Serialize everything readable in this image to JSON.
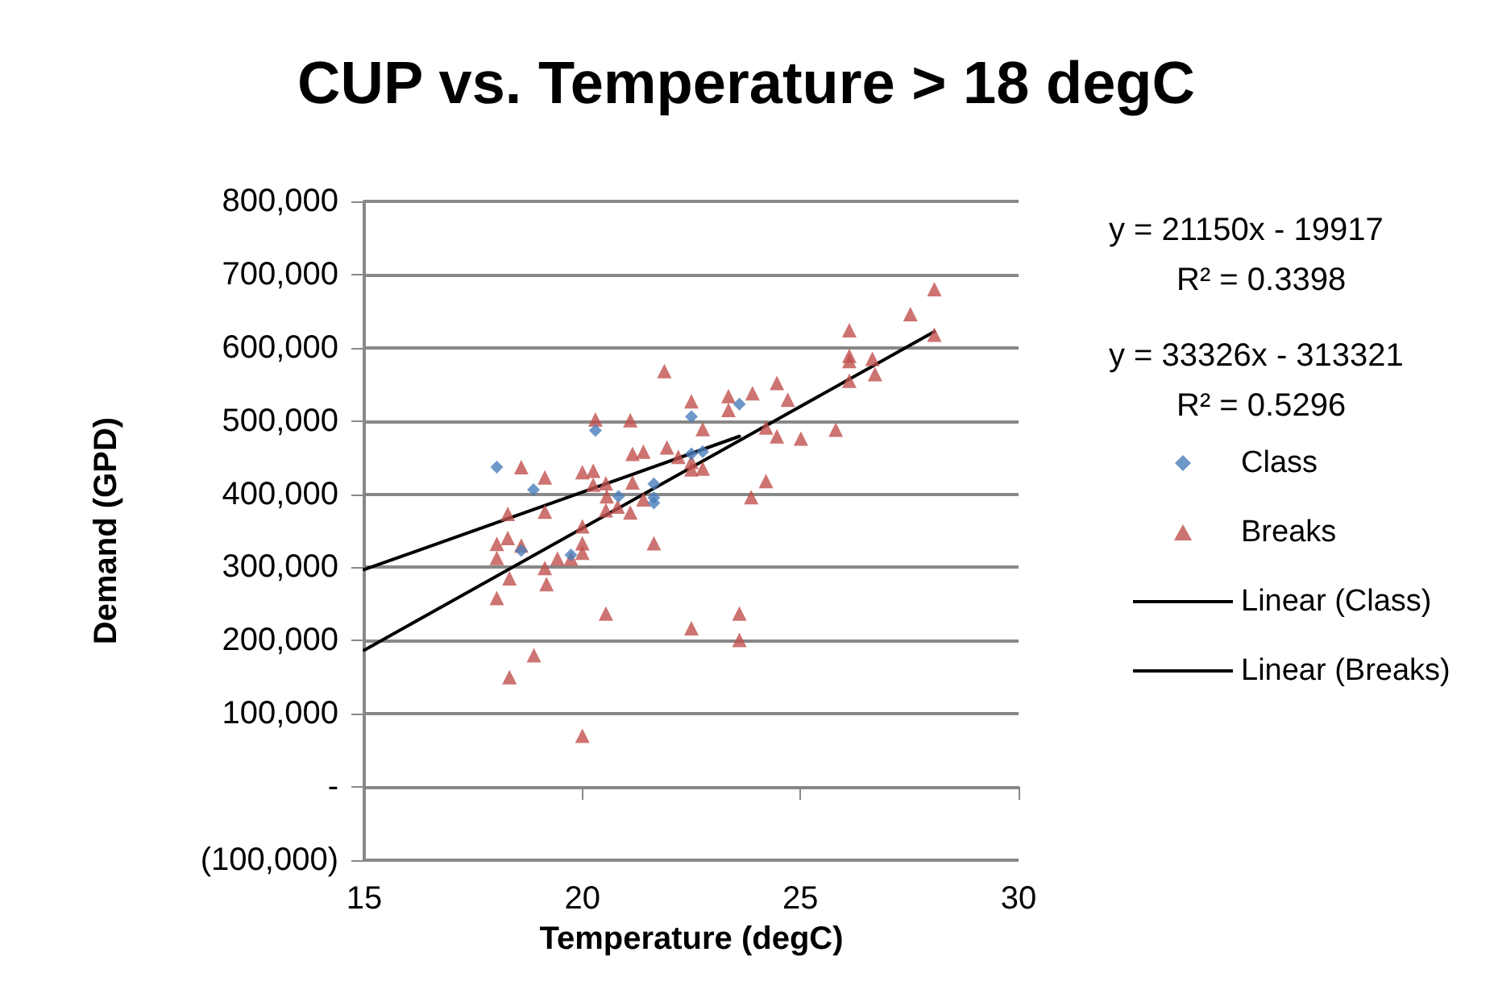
{
  "chart_data": {
    "type": "scatter",
    "title": "CUP vs. Temperature > 18 degC",
    "xlabel": "Temperature (degC)",
    "ylabel": "Demand (GPD)",
    "annotations": [
      "y = 21150x - 19917",
      "R² = 0.3398",
      "y = 33326x - 313321",
      "R² = 0.5296"
    ],
    "xlim": [
      15,
      30
    ],
    "xticks": [
      15,
      20,
      25,
      30
    ],
    "ylim": [
      -100000,
      800000
    ],
    "yticks": [
      {
        "value": -100000,
        "label": "(100,000)"
      },
      {
        "value": 0,
        "label": "-"
      },
      {
        "value": 100000,
        "label": "100,000"
      },
      {
        "value": 200000,
        "label": "200,000"
      },
      {
        "value": 300000,
        "label": "300,000"
      },
      {
        "value": 400000,
        "label": "400,000"
      },
      {
        "value": 500000,
        "label": "500,000"
      },
      {
        "value": 600000,
        "label": "600,000"
      },
      {
        "value": 700000,
        "label": "700,000"
      },
      {
        "value": 800000,
        "label": "800,000"
      }
    ],
    "grid": "y",
    "legend": "right",
    "series": [
      {
        "name": "Class",
        "marker": "diamond",
        "color": "#4a7ebb",
        "x": [
          18.04,
          18.88,
          18.6,
          20.3,
          19.74,
          20.83,
          21.64,
          21.64,
          21.64,
          22.5,
          23.6,
          22.76,
          22.5
        ],
        "values": [
          437000,
          406000,
          323000,
          487000,
          317000,
          397000,
          414000,
          395000,
          388000,
          506000,
          523000,
          458000,
          455000
        ]
      },
      {
        "name": "Breaks",
        "marker": "triangle",
        "color": "#c0504d",
        "x": [
          21.88,
          20.3,
          21.1,
          18.6,
          19.14,
          20.0,
          20.25,
          20.25,
          20.54,
          21.15,
          21.4,
          21.94,
          20.56,
          21.15,
          21.4,
          20.54,
          20.81,
          21.1,
          18.29,
          19.14,
          20.0,
          21.64,
          18.04,
          18.29,
          18.6,
          18.04,
          20.0,
          20.0,
          19.43,
          19.74,
          19.14,
          18.33,
          19.18,
          18.04,
          20.54,
          18.89,
          18.33,
          20.0,
          28.07,
          27.52,
          26.12,
          28.07,
          26.12,
          26.12,
          26.65,
          26.71,
          26.12,
          24.46,
          23.9,
          23.35,
          22.5,
          24.71,
          23.35,
          22.76,
          24.21,
          24.46,
          25.01,
          25.81,
          22.2,
          22.5,
          22.5,
          22.76,
          24.21,
          23.87,
          22.5,
          23.6,
          23.6
        ],
        "values": [
          568000,
          502000,
          501000,
          437000,
          423000,
          430000,
          432000,
          413000,
          415000,
          455000,
          458000,
          464000,
          397000,
          416000,
          393000,
          378000,
          383000,
          375000,
          373000,
          376000,
          356000,
          333000,
          332000,
          340000,
          330000,
          313000,
          333000,
          320000,
          312000,
          312000,
          299000,
          285000,
          277000,
          258000,
          237000,
          180000,
          150000,
          70000,
          680000,
          646000,
          624000,
          618000,
          589000,
          582000,
          585000,
          564000,
          555000,
          552000,
          538000,
          534000,
          527000,
          529000,
          515000,
          489000,
          491000,
          479000,
          476000,
          488000,
          451000,
          444000,
          434000,
          435000,
          418000,
          396000,
          217000,
          237000,
          201000
        ]
      },
      {
        "name": "Linear (Class)",
        "type": "line",
        "marker": "none",
        "color": "#000000",
        "x": [
          15,
          23.6
        ],
        "values": [
          297000,
          479000
        ]
      },
      {
        "name": "Linear (Breaks)",
        "type": "line",
        "marker": "none",
        "color": "#000000",
        "x": [
          15,
          28.07
        ],
        "values": [
          187000,
          622000
        ]
      }
    ]
  }
}
